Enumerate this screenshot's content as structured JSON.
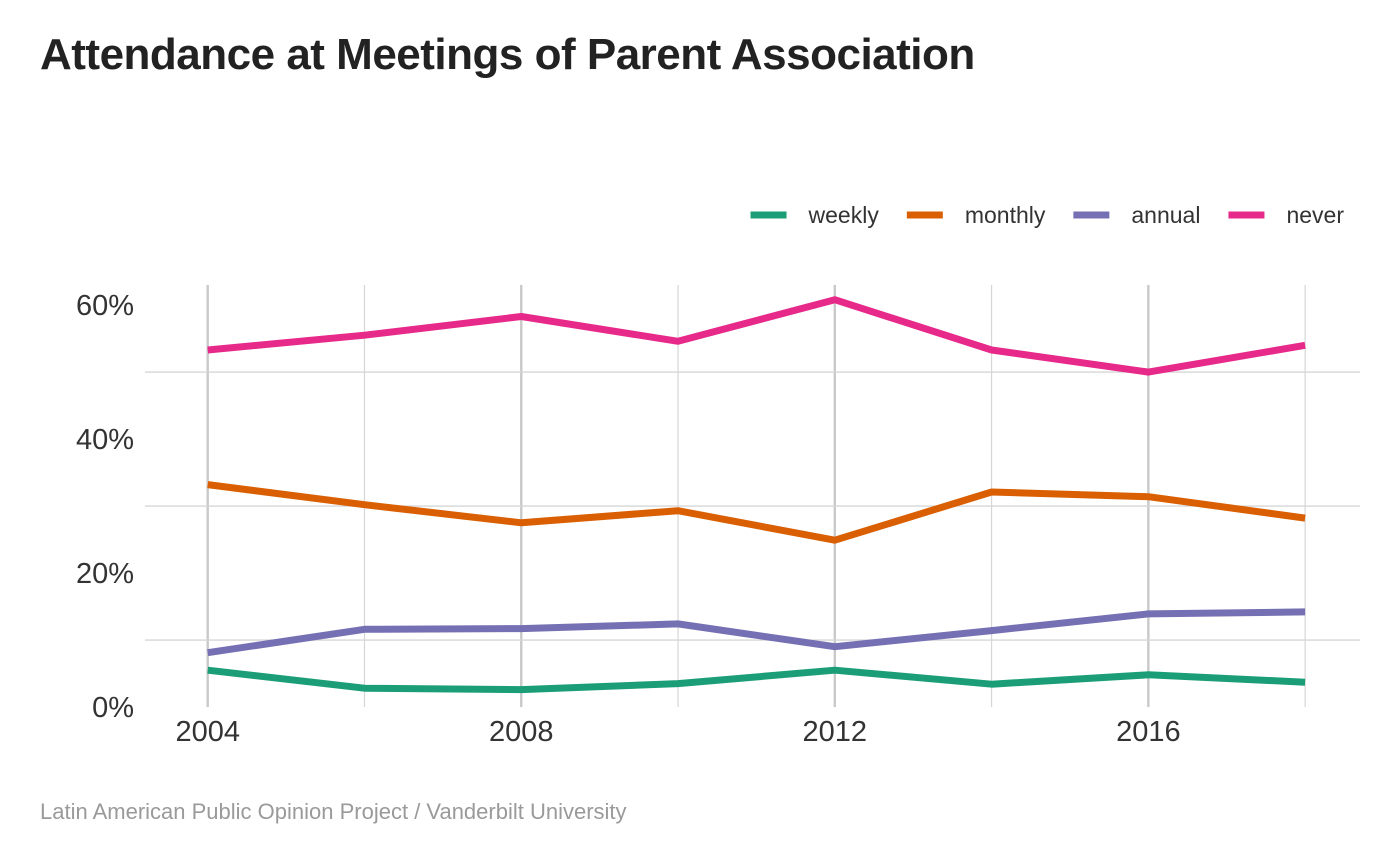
{
  "title": "Attendance at Meetings of Parent Association",
  "caption": "Latin American Public Opinion Project / Vanderbilt University",
  "chart_data": {
    "type": "line",
    "title": "Attendance at Meetings of Parent Association",
    "xlabel": "",
    "ylabel": "",
    "x": [
      2004,
      2006,
      2008,
      2010,
      2012,
      2014,
      2016,
      2018
    ],
    "x_ticks": [
      2004,
      2008,
      2012,
      2016
    ],
    "x_tick_labels": [
      "2004",
      "2008",
      "2012",
      "2016"
    ],
    "xlim": [
      2003.2,
      2018.7
    ],
    "y_ticks": [
      0,
      20,
      40,
      60
    ],
    "y_tick_labels": [
      "0%",
      "20%",
      "40%",
      "60%"
    ],
    "ylim": [
      0,
      63
    ],
    "grid": true,
    "legend_position": "top-right",
    "series": [
      {
        "name": "weekly",
        "color": "#1b9e77",
        "values": [
          5.5,
          2.8,
          2.6,
          3.5,
          5.5,
          3.4,
          4.8,
          3.7
        ]
      },
      {
        "name": "monthly",
        "color": "#d95f02",
        "values": [
          33.2,
          30.2,
          27.5,
          29.3,
          24.9,
          32.1,
          31.4,
          28.2
        ]
      },
      {
        "name": "annual",
        "color": "#7570b3",
        "values": [
          8.1,
          11.6,
          11.7,
          12.4,
          9.0,
          11.4,
          13.9,
          14.2
        ]
      },
      {
        "name": "never",
        "color": "#e7298a",
        "values": [
          53.3,
          55.5,
          58.3,
          54.6,
          60.8,
          53.3,
          50.0,
          54.0
        ]
      }
    ]
  }
}
